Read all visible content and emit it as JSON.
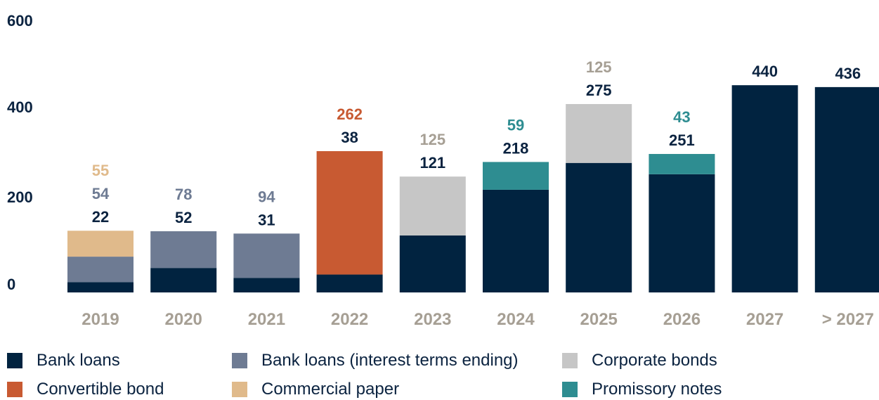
{
  "chart_data": {
    "type": "bar",
    "stacked": true,
    "categories": [
      "2019",
      "2020",
      "2021",
      "2022",
      "2023",
      "2024",
      "2025",
      "2026",
      "2027",
      "> 2027"
    ],
    "ylim": [
      0,
      600
    ],
    "yticks": [
      "0",
      "200",
      "400",
      "600"
    ],
    "grid": false,
    "legend_position": "bottom",
    "colors": {
      "axis_text": "#0b2340",
      "category_text": "#a69f94"
    },
    "series": [
      {
        "name": "Bank loans",
        "color": "#012340",
        "values": [
          22,
          52,
          31,
          38,
          121,
          218,
          275,
          251,
          440,
          436
        ]
      },
      {
        "name": "Bank loans (interest terms ending)",
        "color": "#6e7b93",
        "values": [
          54,
          78,
          94,
          0,
          0,
          0,
          0,
          0,
          0,
          0
        ]
      },
      {
        "name": "Corporate bonds",
        "color": "#c6c6c6",
        "values": [
          0,
          0,
          0,
          0,
          125,
          0,
          125,
          0,
          0,
          0
        ]
      },
      {
        "name": "Convertible bond",
        "color": "#c85a32",
        "values": [
          0,
          0,
          0,
          262,
          0,
          0,
          0,
          0,
          0,
          0
        ]
      },
      {
        "name": "Commercial paper",
        "color": "#e0ba8b",
        "values": [
          55,
          0,
          0,
          0,
          0,
          0,
          0,
          0,
          0,
          0
        ]
      },
      {
        "name": "Promissory notes",
        "color": "#2e8d91",
        "values": [
          0,
          0,
          0,
          0,
          0,
          59,
          0,
          43,
          0,
          0
        ]
      }
    ],
    "label_colors": {
      "Bank loans": "#0b2340",
      "Bank loans (interest terms ending)": "#6e7b93",
      "Corporate bonds": "#a69f94",
      "Convertible bond": "#c85a32",
      "Commercial paper": "#e0ba8b",
      "Promissory notes": "#2e8d91"
    }
  },
  "legend": [
    {
      "label": "Bank loans",
      "color": "#012340"
    },
    {
      "label": "Bank loans (interest terms ending)",
      "color": "#6e7b93"
    },
    {
      "label": "Corporate bonds",
      "color": "#c6c6c6"
    },
    {
      "label": "Convertible bond",
      "color": "#c85a32"
    },
    {
      "label": "Commercial paper",
      "color": "#e0ba8b"
    },
    {
      "label": "Promissory notes",
      "color": "#2e8d91"
    }
  ]
}
